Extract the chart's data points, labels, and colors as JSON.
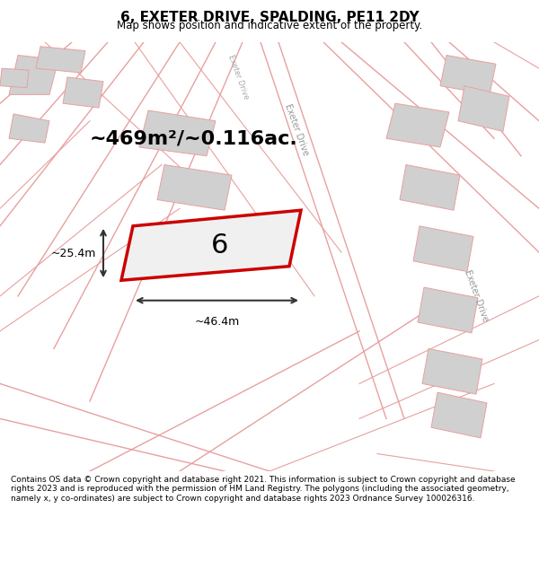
{
  "title": "6, EXETER DRIVE, SPALDING, PE11 2DY",
  "subtitle": "Map shows position and indicative extent of the property.",
  "footer": "Contains OS data © Crown copyright and database right 2021. This information is subject to Crown copyright and database rights 2023 and is reproduced with the permission of HM Land Registry. The polygons (including the associated geometry, namely x, y co-ordinates) are subject to Crown copyright and database rights 2023 Ordnance Survey 100026316.",
  "area_label": "~469m²/~0.116ac.",
  "width_label": "~46.4m",
  "height_label": "~25.4m",
  "plot_number": "6",
  "bg_color": "#f5f5f5",
  "map_bg": "#ffffff",
  "road_color": "#e8a0a0",
  "building_color": "#d0d0d0",
  "plot_fill": "#f0f0f0",
  "plot_edge": "#cc0000",
  "road_label_color": "#aaaaaa",
  "dim_color": "#333333"
}
